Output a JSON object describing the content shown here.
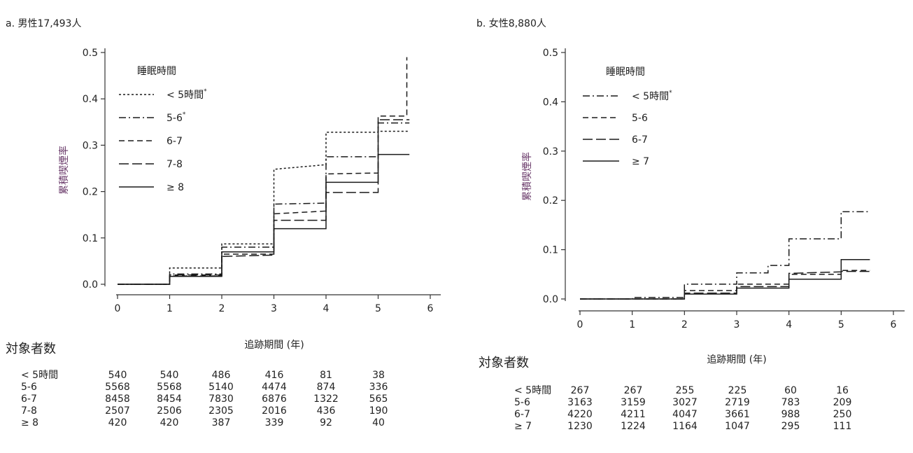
{
  "chart_data": [
    {
      "type": "line",
      "title": "a. 男性17,493人",
      "xlabel": "追跡期間 (年)",
      "ylabel": "累積喫煙率",
      "xlim": [
        0,
        6
      ],
      "ylim": [
        0,
        0.5
      ],
      "xticks": [
        "0",
        "1",
        "2",
        "3",
        "4",
        "5",
        "6"
      ],
      "yticks": [
        "0.0",
        "0.1",
        "0.2",
        "0.3",
        "0.4",
        "0.5"
      ],
      "legend": {
        "title": "睡眠時間",
        "entries": [
          {
            "label": "< 5時間",
            "sup": "*",
            "dash": "3,3"
          },
          {
            "label": "5-6",
            "sup": "*",
            "dash": "10,4,2,4"
          },
          {
            "label": "6-7",
            "sup": "",
            "dash": "8,5"
          },
          {
            "label": "7-8",
            "sup": "",
            "dash": "14,5"
          },
          {
            "label": "≥ 8",
            "sup": "",
            "dash": ""
          }
        ]
      },
      "series": [
        {
          "name": "< 5時間",
          "dash": "3,3",
          "x": [
            0,
            1,
            1,
            2,
            2,
            3,
            3,
            4,
            4,
            5,
            5,
            5.6
          ],
          "y": [
            0,
            0,
            0.035,
            0.035,
            0.087,
            0.087,
            0.248,
            0.258,
            0.328,
            0.328,
            0.33,
            0.33
          ]
        },
        {
          "name": "5-6",
          "dash": "10,4,2,4",
          "x": [
            0,
            1,
            1,
            2,
            2,
            3,
            3,
            4,
            4,
            5,
            5,
            5.6
          ],
          "y": [
            0,
            0,
            0.022,
            0.022,
            0.08,
            0.08,
            0.173,
            0.175,
            0.275,
            0.275,
            0.348,
            0.348
          ]
        },
        {
          "name": "6-7",
          "dash": "8,5",
          "x": [
            0,
            1,
            1,
            2,
            2,
            3,
            3,
            4,
            4,
            5,
            5,
            5.55,
            5.55
          ],
          "y": [
            0,
            0,
            0.018,
            0.018,
            0.065,
            0.065,
            0.152,
            0.158,
            0.238,
            0.24,
            0.363,
            0.363,
            0.49
          ]
        },
        {
          "name": "7-8",
          "dash": "14,5",
          "x": [
            0,
            1,
            1,
            2,
            2,
            3,
            3,
            4,
            4,
            5,
            5,
            5.6
          ],
          "y": [
            0,
            0,
            0.02,
            0.02,
            0.06,
            0.063,
            0.138,
            0.138,
            0.198,
            0.198,
            0.355,
            0.355
          ]
        },
        {
          "name": "≥ 8",
          "dash": "",
          "x": [
            0,
            1,
            1,
            2,
            2,
            3,
            3,
            4,
            4,
            5,
            5,
            5.6
          ],
          "y": [
            0,
            0,
            0.017,
            0.017,
            0.07,
            0.07,
            0.12,
            0.12,
            0.22,
            0.22,
            0.28,
            0.28
          ]
        }
      ],
      "risk_table": {
        "title": "対象者数",
        "rows": [
          {
            "label": "< 5時間",
            "values": [
              "540",
              "540",
              "486",
              "416",
              "81",
              "38"
            ]
          },
          {
            "label": "5-6",
            "values": [
              "5568",
              "5568",
              "5140",
              "4474",
              "874",
              "336"
            ]
          },
          {
            "label": "6-7",
            "values": [
              "8458",
              "8454",
              "7830",
              "6876",
              "1322",
              "565"
            ]
          },
          {
            "label": "7-8",
            "values": [
              "2507",
              "2506",
              "2305",
              "2016",
              "436",
              "190"
            ]
          },
          {
            "label": "≥ 8",
            "values": [
              "420",
              "420",
              "387",
              "339",
              "92",
              "40"
            ]
          }
        ]
      }
    },
    {
      "type": "line",
      "title": "b. 女性8,880人",
      "xlabel": "追跡期間 (年)",
      "ylabel": "累積喫煙率",
      "xlim": [
        0,
        6
      ],
      "ylim": [
        0,
        0.5
      ],
      "xticks": [
        "0",
        "1",
        "2",
        "3",
        "4",
        "5",
        "6"
      ],
      "yticks": [
        "0.0",
        "0.1",
        "0.2",
        "0.3",
        "0.4",
        "0.5"
      ],
      "legend": {
        "title": "睡眠時間",
        "entries": [
          {
            "label": "< 5時間",
            "sup": "*",
            "dash": "10,4,2,4"
          },
          {
            "label": "5-6",
            "sup": "",
            "dash": "8,5"
          },
          {
            "label": "6-7",
            "sup": "",
            "dash": "14,5"
          },
          {
            "label": "≥ 7",
            "sup": "",
            "dash": ""
          }
        ]
      },
      "series": [
        {
          "name": "< 5時間",
          "dash": "10,4,2,4",
          "x": [
            0,
            1,
            1,
            2,
            2,
            3,
            3,
            3.6,
            3.6,
            4,
            4,
            5,
            5,
            5.55
          ],
          "y": [
            0,
            0,
            0.003,
            0.003,
            0.03,
            0.03,
            0.053,
            0.053,
            0.068,
            0.068,
            0.122,
            0.122,
            0.177,
            0.177
          ]
        },
        {
          "name": "5-6",
          "dash": "8,5",
          "x": [
            0,
            2,
            2,
            3,
            3,
            4,
            4,
            5,
            5,
            5.55
          ],
          "y": [
            0,
            0,
            0.017,
            0.017,
            0.03,
            0.03,
            0.05,
            0.05,
            0.058,
            0.058
          ]
        },
        {
          "name": "6-7",
          "dash": "14,5",
          "x": [
            0,
            2,
            2,
            3,
            3,
            4,
            4,
            5,
            5,
            5.55
          ],
          "y": [
            0,
            0,
            0.012,
            0.012,
            0.025,
            0.025,
            0.052,
            0.055,
            0.056,
            0.056
          ]
        },
        {
          "name": "≥ 7",
          "dash": "",
          "x": [
            0,
            2,
            2,
            3,
            3,
            4,
            4,
            5,
            5,
            5.55
          ],
          "y": [
            0,
            0,
            0.01,
            0.01,
            0.022,
            0.022,
            0.04,
            0.04,
            0.08,
            0.08
          ]
        }
      ],
      "risk_table": {
        "title": "対象者数",
        "rows": [
          {
            "label": "< 5時間",
            "values": [
              "267",
              "267",
              "255",
              "225",
              "60",
              "16"
            ]
          },
          {
            "label": "5-6",
            "values": [
              "3163",
              "3159",
              "3027",
              "2719",
              "783",
              "209"
            ]
          },
          {
            "label": "6-7",
            "values": [
              "4220",
              "4211",
              "4047",
              "3661",
              "988",
              "250"
            ]
          },
          {
            "label": "≥ 7",
            "values": [
              "1230",
              "1224",
              "1164",
              "1047",
              "295",
              "111"
            ]
          }
        ]
      }
    }
  ]
}
